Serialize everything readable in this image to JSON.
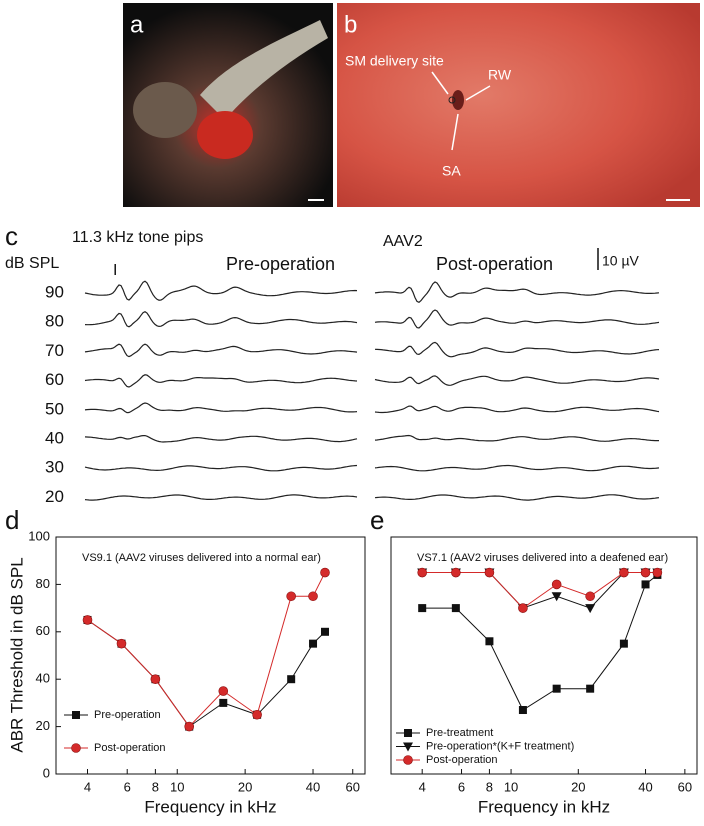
{
  "photo_a": {
    "label": "a"
  },
  "photo_b": {
    "label": "b",
    "site_label": "SM delivery site",
    "rw_label": "RW",
    "sa_label": "SA"
  },
  "abr_traces": {
    "label": "c",
    "stimulus": "11.3 kHz tone pips",
    "y_label": "dB SPL",
    "wave_label": "I",
    "left_title": "Pre-operation",
    "virus": "AAV2",
    "right_title": "Post-operation",
    "scale": "10 µV",
    "levels": [
      90,
      80,
      70,
      60,
      50,
      40,
      30,
      20
    ]
  },
  "chart_data": [
    {
      "type": "line",
      "label": "d",
      "annotation": "VS9.1 (AAV2 viruses delivered into a normal ear)",
      "y_label": "ABR Threshold in dB SPL",
      "x_label": "Frequency in kHz",
      "log_x": true,
      "xlim": [
        2.9,
        68
      ],
      "xticks": [
        4,
        6,
        8,
        10,
        20,
        40,
        60
      ],
      "ylim": [
        0,
        100
      ],
      "yticks": [
        0,
        20,
        40,
        60,
        80,
        100
      ],
      "x": [
        4,
        5.66,
        8,
        11.3,
        16,
        22.6,
        32,
        40,
        45.2
      ],
      "series": [
        {
          "name": "Pre-operation",
          "color": "#111111",
          "marker": "square",
          "values": [
            65,
            55,
            40,
            20,
            30,
            25,
            40,
            55,
            60
          ]
        },
        {
          "name": "Post-operation",
          "color": "#d42a2a",
          "marker": "circle",
          "values": [
            65,
            55,
            40,
            20,
            35,
            25,
            75,
            75,
            85
          ]
        }
      ]
    },
    {
      "type": "line",
      "label": "e",
      "annotation": "VS7.1 (AAV2 viruses delivered into a deafened ear)",
      "x_label": "Frequency in kHz",
      "log_x": true,
      "xlim": [
        2.9,
        68
      ],
      "xticks": [
        4,
        6,
        8,
        10,
        20,
        40,
        60
      ],
      "ylim": [
        0,
        100
      ],
      "x": [
        4,
        5.66,
        8,
        11.3,
        16,
        22.6,
        32,
        40,
        45.2
      ],
      "series": [
        {
          "name": "Pre-treatment",
          "color": "#111111",
          "marker": "square",
          "values": [
            70,
            70,
            56,
            27,
            36,
            36,
            55,
            80,
            84
          ]
        },
        {
          "name": "Pre-operation*(K+F treatment)",
          "color": "#111111",
          "marker": "triangle",
          "values": [
            85,
            85,
            85,
            70,
            75,
            70,
            85,
            85,
            85
          ]
        },
        {
          "name": "Post-operation",
          "color": "#d42a2a",
          "marker": "circle",
          "values": [
            85,
            85,
            85,
            70,
            80,
            75,
            85,
            85,
            85
          ]
        }
      ]
    }
  ]
}
